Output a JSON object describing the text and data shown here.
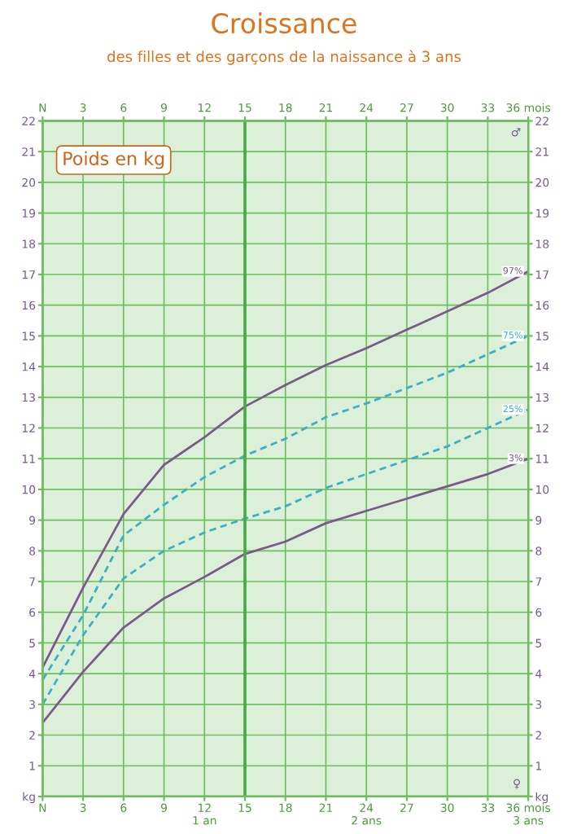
{
  "chart_data": {
    "type": "line",
    "title": "Croissance",
    "subtitle": "des filles et des garçons de la naissance à 3 ans",
    "annotations": [
      "Poids en kg",
      "♂",
      "♀"
    ],
    "x": [
      0,
      3,
      6,
      9,
      12,
      15,
      18,
      21,
      24,
      27,
      30,
      33,
      36
    ],
    "series": [
      {
        "name": "97%",
        "color": "#7a5a8c",
        "line_style": "solid",
        "values": [
          4.2,
          6.8,
          9.2,
          10.8,
          11.7,
          12.7,
          13.4,
          14.05,
          14.6,
          15.2,
          15.8,
          16.4,
          17.1
        ]
      },
      {
        "name": "75%",
        "color": "#3ab0c8",
        "line_style": "dashed",
        "values": [
          3.8,
          5.9,
          8.5,
          9.5,
          10.4,
          11.1,
          11.65,
          12.35,
          12.8,
          13.3,
          13.8,
          14.4,
          15.0
        ]
      },
      {
        "name": "25%",
        "color": "#3ab0c8",
        "line_style": "dashed",
        "values": [
          3.0,
          5.25,
          7.1,
          8.0,
          8.6,
          9.05,
          9.45,
          10.05,
          10.5,
          10.95,
          11.4,
          12.0,
          12.6
        ]
      },
      {
        "name": "3%",
        "color": "#7a5a8c",
        "line_style": "solid",
        "values": [
          2.4,
          4.06,
          5.5,
          6.45,
          7.15,
          7.9,
          8.3,
          8.9,
          9.3,
          9.7,
          10.1,
          10.5,
          11.0
        ]
      }
    ],
    "xlim": [
      0,
      36
    ],
    "xticks": [
      {
        "value": 0,
        "label": "N"
      },
      3,
      6,
      9,
      {
        "value": 12,
        "label": "12\n1 an"
      },
      15,
      18,
      21,
      {
        "value": 24,
        "label": "24\n2 ans"
      },
      27,
      30,
      33,
      {
        "value": 36,
        "label": "36 mois\n3 ans"
      }
    ],
    "x2lim": [
      0,
      36
    ],
    "x2ticks": [
      {
        "value": 0,
        "label": "N"
      },
      3,
      6,
      9,
      12,
      15,
      18,
      21,
      24,
      27,
      30,
      33,
      {
        "value": 36,
        "label": "36 mois"
      }
    ],
    "ylim": [
      0,
      22
    ],
    "yticks": [
      {
        "value": 0,
        "label": "kg"
      },
      1,
      2,
      3,
      4,
      5,
      6,
      7,
      8,
      9,
      10,
      11,
      12,
      13,
      14,
      15,
      16,
      17,
      18,
      19,
      20,
      21,
      22
    ],
    "y2lim": [
      0,
      22
    ],
    "y2ticks": [
      {
        "value": 0,
        "label": "kg"
      },
      1,
      2,
      3,
      4,
      5,
      6,
      7,
      8,
      9,
      10,
      11,
      12,
      13,
      14,
      15,
      16,
      17,
      18,
      19,
      20,
      21,
      22
    ],
    "ref_lines": [
      {
        "axis": "x",
        "value": 15,
        "color": "#3fae3f"
      }
    ],
    "grid": true,
    "legend": false,
    "marker": "none"
  }
}
